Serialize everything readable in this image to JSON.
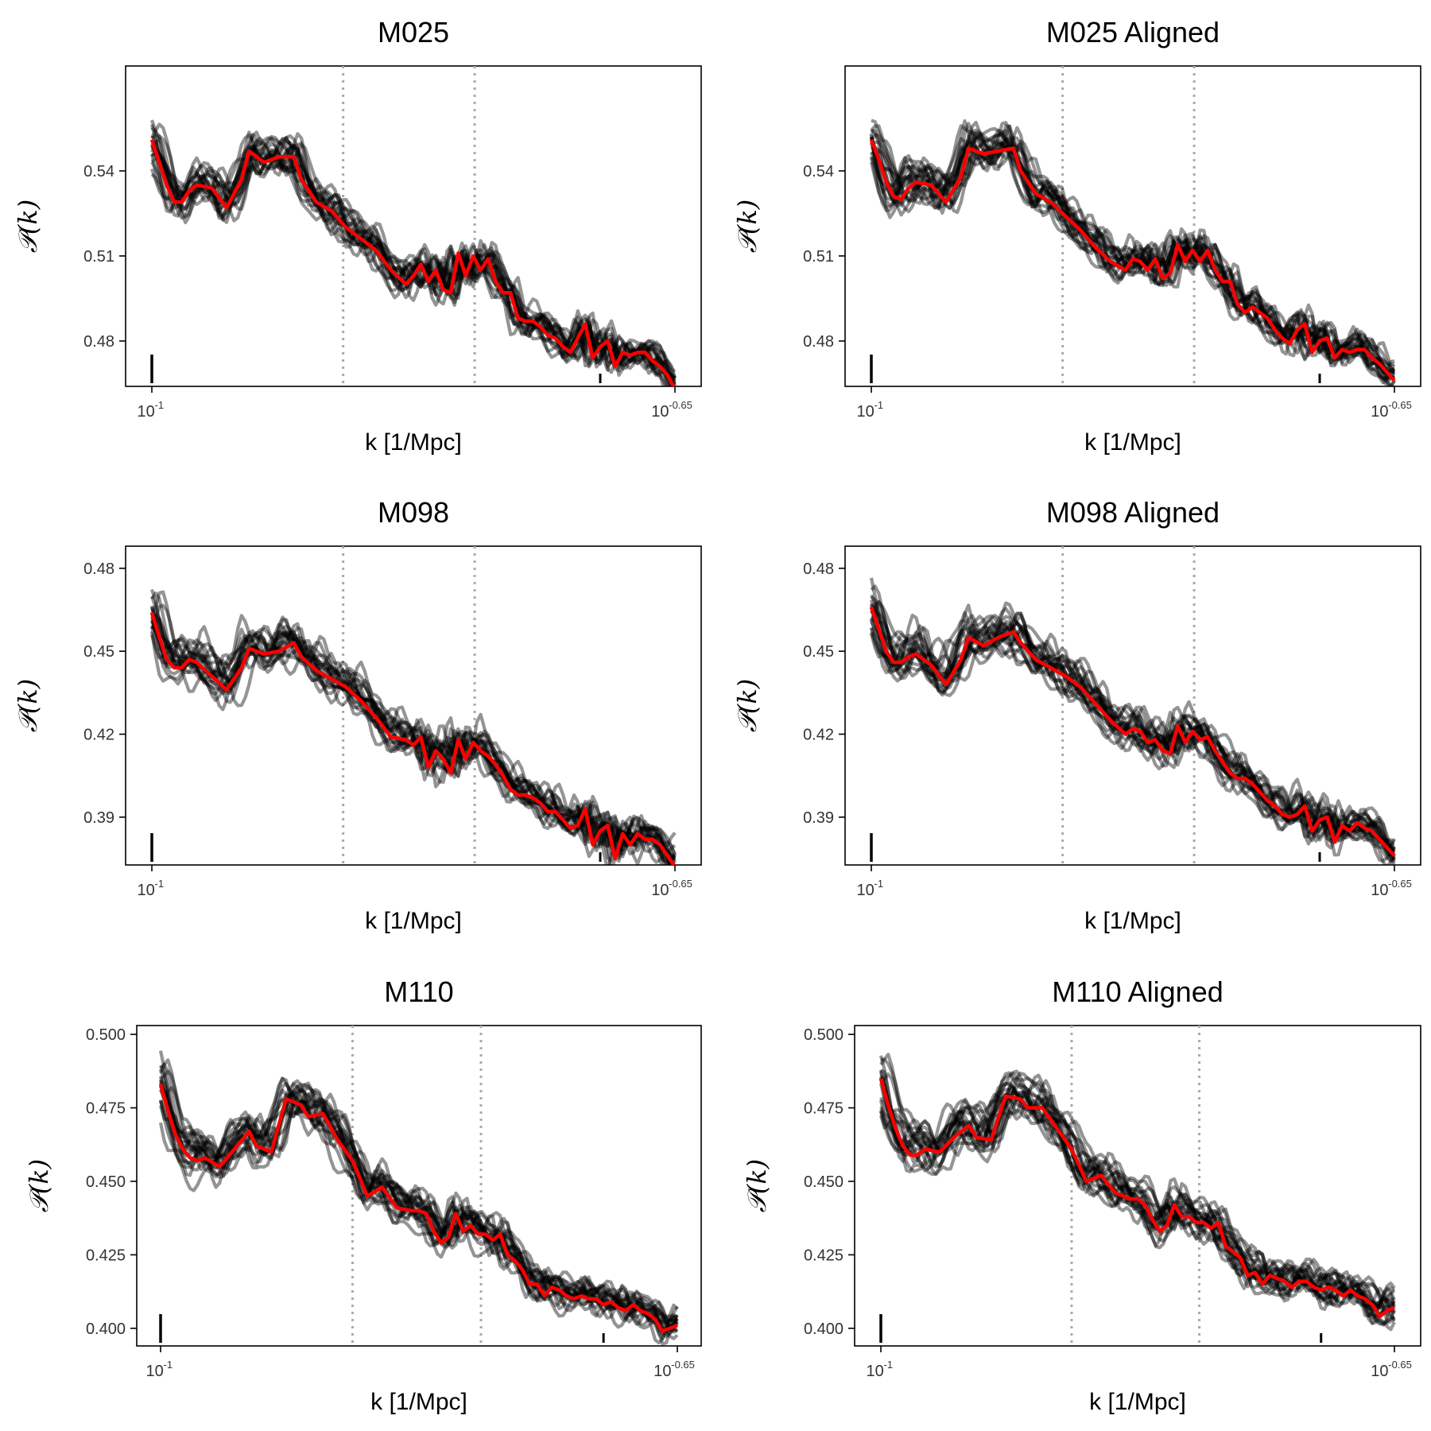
{
  "colors": {
    "replicate": "#000000",
    "mean": "#ff0000",
    "guide": "#aaaaaa"
  },
  "chart_data": [
    {
      "type": "line",
      "title": "M025",
      "xlabel": "k [1/Mpc]",
      "ylabel": "𝒫(k)",
      "x_ticks": [
        {
          "base": "10",
          "exp": "-1"
        },
        {
          "base": "10",
          "exp": "-0.65"
        }
      ],
      "xlim": [
        -1,
        -0.65
      ],
      "ylim": [
        0.464,
        0.577
      ],
      "y_ticks": [
        {
          "value": 0.48,
          "label": "0.48"
        },
        {
          "value": 0.51,
          "label": "0.51"
        },
        {
          "value": 0.54,
          "label": "0.54"
        }
      ],
      "vlines": [
        -0.872,
        -0.784
      ],
      "rug": [
        {
          "x": -1,
          "size": "long"
        },
        {
          "x": -0.7,
          "size": "short"
        }
      ],
      "series_count": 20,
      "series_spread": 0.0065,
      "mean_series": {
        "name": "mean",
        "x": [
          -1,
          -0.995,
          -0.99,
          -0.985,
          -0.98,
          -0.975,
          -0.97,
          -0.96,
          -0.95,
          -0.94,
          -0.935,
          -0.925,
          -0.915,
          -0.905,
          -0.9,
          -0.89,
          -0.88,
          -0.87,
          -0.86,
          -0.85,
          -0.84,
          -0.83,
          -0.825,
          -0.82,
          -0.815,
          -0.81,
          -0.805,
          -0.8,
          -0.795,
          -0.79,
          -0.785,
          -0.78,
          -0.775,
          -0.77,
          -0.765,
          -0.76,
          -0.755,
          -0.75,
          -0.745,
          -0.74,
          -0.735,
          -0.73,
          -0.725,
          -0.72,
          -0.715,
          -0.71,
          -0.705,
          -0.7,
          -0.695,
          -0.69,
          -0.685,
          -0.68,
          -0.675,
          -0.67,
          -0.665,
          -0.66,
          -0.655,
          -0.65
        ],
        "y": [
          0.551,
          0.543,
          0.535,
          0.529,
          0.529,
          0.533,
          0.535,
          0.534,
          0.527,
          0.537,
          0.547,
          0.543,
          0.545,
          0.545,
          0.537,
          0.529,
          0.526,
          0.52,
          0.516,
          0.512,
          0.505,
          0.5,
          0.503,
          0.507,
          0.501,
          0.505,
          0.498,
          0.497,
          0.511,
          0.503,
          0.51,
          0.505,
          0.509,
          0.501,
          0.497,
          0.497,
          0.488,
          0.487,
          0.487,
          0.485,
          0.482,
          0.481,
          0.478,
          0.476,
          0.481,
          0.486,
          0.474,
          0.478,
          0.48,
          0.471,
          0.476,
          0.475,
          0.476,
          0.476,
          0.473,
          0.471,
          0.468,
          0.463
        ]
      }
    },
    {
      "type": "line",
      "title": "M025 Aligned",
      "xlabel": "k [1/Mpc]",
      "ylabel": "𝒫(k)",
      "x_ticks": [
        {
          "base": "10",
          "exp": "-1"
        },
        {
          "base": "10",
          "exp": "-0.65"
        }
      ],
      "xlim": [
        -1,
        -0.65
      ],
      "ylim": [
        0.464,
        0.577
      ],
      "y_ticks": [
        {
          "value": 0.48,
          "label": "0.48"
        },
        {
          "value": 0.51,
          "label": "0.51"
        },
        {
          "value": 0.54,
          "label": "0.54"
        }
      ],
      "vlines": [
        -0.872,
        -0.784
      ],
      "rug": [
        {
          "x": -1,
          "size": "long"
        },
        {
          "x": -0.7,
          "size": "short"
        }
      ],
      "series_count": 20,
      "series_spread": 0.0065,
      "mean_series": {
        "name": "mean",
        "x": [
          -1,
          -0.995,
          -0.99,
          -0.985,
          -0.98,
          -0.975,
          -0.97,
          -0.96,
          -0.95,
          -0.94,
          -0.935,
          -0.925,
          -0.915,
          -0.905,
          -0.9,
          -0.89,
          -0.88,
          -0.87,
          -0.86,
          -0.85,
          -0.84,
          -0.83,
          -0.825,
          -0.82,
          -0.815,
          -0.81,
          -0.805,
          -0.8,
          -0.795,
          -0.79,
          -0.785,
          -0.78,
          -0.775,
          -0.77,
          -0.765,
          -0.76,
          -0.755,
          -0.75,
          -0.745,
          -0.74,
          -0.735,
          -0.73,
          -0.725,
          -0.72,
          -0.715,
          -0.71,
          -0.705,
          -0.7,
          -0.695,
          -0.69,
          -0.685,
          -0.68,
          -0.675,
          -0.67,
          -0.665,
          -0.66,
          -0.655,
          -0.65
        ],
        "y": [
          0.551,
          0.544,
          0.536,
          0.531,
          0.53,
          0.534,
          0.536,
          0.535,
          0.529,
          0.538,
          0.548,
          0.546,
          0.547,
          0.548,
          0.54,
          0.532,
          0.529,
          0.524,
          0.519,
          0.513,
          0.508,
          0.505,
          0.509,
          0.508,
          0.505,
          0.509,
          0.502,
          0.504,
          0.514,
          0.508,
          0.512,
          0.508,
          0.512,
          0.505,
          0.501,
          0.501,
          0.493,
          0.49,
          0.492,
          0.49,
          0.488,
          0.484,
          0.481,
          0.479,
          0.484,
          0.486,
          0.476,
          0.48,
          0.481,
          0.474,
          0.477,
          0.476,
          0.477,
          0.477,
          0.474,
          0.472,
          0.469,
          0.466
        ]
      }
    },
    {
      "type": "line",
      "title": "M098",
      "xlabel": "k [1/Mpc]",
      "ylabel": "𝒫(k)",
      "x_ticks": [
        {
          "base": "10",
          "exp": "-1"
        },
        {
          "base": "10",
          "exp": "-0.65"
        }
      ],
      "xlim": [
        -1,
        -0.65
      ],
      "ylim": [
        0.3727,
        0.488
      ],
      "y_ticks": [
        {
          "value": 0.39,
          "label": "0.39"
        },
        {
          "value": 0.42,
          "label": "0.42"
        },
        {
          "value": 0.45,
          "label": "0.45"
        },
        {
          "value": 0.48,
          "label": "0.48"
        }
      ],
      "vlines": [
        -0.872,
        -0.784
      ],
      "rug": [
        {
          "x": -1,
          "size": "long"
        },
        {
          "x": -0.7,
          "size": "short"
        }
      ],
      "series_count": 20,
      "series_spread": 0.0065,
      "mean_series": {
        "name": "mean",
        "x": [
          -1,
          -0.995,
          -0.99,
          -0.985,
          -0.98,
          -0.975,
          -0.97,
          -0.96,
          -0.95,
          -0.94,
          -0.935,
          -0.925,
          -0.915,
          -0.905,
          -0.9,
          -0.89,
          -0.88,
          -0.87,
          -0.86,
          -0.85,
          -0.84,
          -0.83,
          -0.825,
          -0.82,
          -0.815,
          -0.81,
          -0.805,
          -0.8,
          -0.795,
          -0.79,
          -0.785,
          -0.78,
          -0.775,
          -0.77,
          -0.765,
          -0.76,
          -0.755,
          -0.75,
          -0.745,
          -0.74,
          -0.735,
          -0.73,
          -0.725,
          -0.72,
          -0.715,
          -0.71,
          -0.705,
          -0.7,
          -0.695,
          -0.69,
          -0.685,
          -0.68,
          -0.675,
          -0.67,
          -0.665,
          -0.66,
          -0.655,
          -0.65
        ],
        "y": [
          0.464,
          0.455,
          0.447,
          0.444,
          0.444,
          0.447,
          0.446,
          0.441,
          0.436,
          0.444,
          0.451,
          0.449,
          0.45,
          0.453,
          0.448,
          0.443,
          0.44,
          0.437,
          0.432,
          0.426,
          0.419,
          0.418,
          0.416,
          0.419,
          0.408,
          0.414,
          0.411,
          0.406,
          0.418,
          0.411,
          0.417,
          0.414,
          0.412,
          0.409,
          0.405,
          0.4,
          0.398,
          0.398,
          0.397,
          0.395,
          0.392,
          0.392,
          0.389,
          0.386,
          0.387,
          0.393,
          0.38,
          0.385,
          0.387,
          0.375,
          0.384,
          0.38,
          0.384,
          0.382,
          0.382,
          0.38,
          0.376,
          0.372
        ]
      }
    },
    {
      "type": "line",
      "title": "M098 Aligned",
      "xlabel": "k [1/Mpc]",
      "ylabel": "𝒫(k)",
      "x_ticks": [
        {
          "base": "10",
          "exp": "-1"
        },
        {
          "base": "10",
          "exp": "-0.65"
        }
      ],
      "xlim": [
        -1,
        -0.65
      ],
      "ylim": [
        0.3727,
        0.488
      ],
      "y_ticks": [
        {
          "value": 0.39,
          "label": "0.39"
        },
        {
          "value": 0.42,
          "label": "0.42"
        },
        {
          "value": 0.45,
          "label": "0.45"
        },
        {
          "value": 0.48,
          "label": "0.48"
        }
      ],
      "vlines": [
        -0.872,
        -0.784
      ],
      "rug": [
        {
          "x": -1,
          "size": "long"
        },
        {
          "x": -0.7,
          "size": "short"
        }
      ],
      "series_count": 20,
      "series_spread": 0.0065,
      "mean_series": {
        "name": "mean",
        "x": [
          -1,
          -0.995,
          -0.99,
          -0.985,
          -0.98,
          -0.975,
          -0.97,
          -0.96,
          -0.95,
          -0.94,
          -0.935,
          -0.925,
          -0.915,
          -0.905,
          -0.9,
          -0.89,
          -0.88,
          -0.87,
          -0.86,
          -0.85,
          -0.84,
          -0.83,
          -0.825,
          -0.82,
          -0.815,
          -0.81,
          -0.805,
          -0.8,
          -0.795,
          -0.79,
          -0.785,
          -0.78,
          -0.775,
          -0.77,
          -0.765,
          -0.76,
          -0.755,
          -0.75,
          -0.745,
          -0.74,
          -0.735,
          -0.73,
          -0.725,
          -0.72,
          -0.715,
          -0.71,
          -0.705,
          -0.7,
          -0.695,
          -0.69,
          -0.685,
          -0.68,
          -0.675,
          -0.67,
          -0.665,
          -0.66,
          -0.655,
          -0.65
        ],
        "y": [
          0.466,
          0.458,
          0.45,
          0.446,
          0.446,
          0.448,
          0.449,
          0.445,
          0.438,
          0.447,
          0.455,
          0.452,
          0.455,
          0.457,
          0.453,
          0.447,
          0.444,
          0.441,
          0.437,
          0.431,
          0.425,
          0.42,
          0.422,
          0.421,
          0.417,
          0.418,
          0.414,
          0.413,
          0.423,
          0.417,
          0.421,
          0.418,
          0.419,
          0.414,
          0.41,
          0.406,
          0.404,
          0.404,
          0.402,
          0.399,
          0.396,
          0.394,
          0.391,
          0.39,
          0.391,
          0.394,
          0.385,
          0.389,
          0.39,
          0.381,
          0.387,
          0.385,
          0.388,
          0.386,
          0.385,
          0.382,
          0.379,
          0.376
        ]
      }
    },
    {
      "type": "line",
      "title": "M110",
      "xlabel": "k [1/Mpc]",
      "ylabel": "𝒫(k)",
      "x_ticks": [
        {
          "base": "10",
          "exp": "-1"
        },
        {
          "base": "10",
          "exp": "-0.65"
        }
      ],
      "xlim": [
        -1,
        -0.65
      ],
      "ylim": [
        0.394,
        0.503
      ],
      "y_ticks": [
        {
          "value": 0.4,
          "label": "0.400"
        },
        {
          "value": 0.425,
          "label": "0.425"
        },
        {
          "value": 0.45,
          "label": "0.450"
        },
        {
          "value": 0.475,
          "label": "0.475"
        },
        {
          "value": 0.5,
          "label": "0.500"
        }
      ],
      "vlines": [
        -0.87,
        -0.783
      ],
      "rug": [
        {
          "x": -1,
          "size": "long"
        },
        {
          "x": -0.7,
          "size": "short"
        }
      ],
      "series_count": 20,
      "series_spread": 0.0065,
      "mean_series": {
        "name": "mean",
        "x": [
          -1,
          -0.995,
          -0.99,
          -0.985,
          -0.98,
          -0.975,
          -0.97,
          -0.96,
          -0.95,
          -0.94,
          -0.935,
          -0.925,
          -0.915,
          -0.905,
          -0.9,
          -0.89,
          -0.88,
          -0.87,
          -0.86,
          -0.85,
          -0.84,
          -0.83,
          -0.825,
          -0.82,
          -0.815,
          -0.81,
          -0.805,
          -0.8,
          -0.795,
          -0.79,
          -0.785,
          -0.78,
          -0.775,
          -0.77,
          -0.765,
          -0.76,
          -0.755,
          -0.75,
          -0.745,
          -0.74,
          -0.735,
          -0.73,
          -0.725,
          -0.72,
          -0.715,
          -0.71,
          -0.705,
          -0.7,
          -0.695,
          -0.69,
          -0.685,
          -0.68,
          -0.675,
          -0.67,
          -0.665,
          -0.66,
          -0.655,
          -0.65
        ],
        "y": [
          0.483,
          0.474,
          0.466,
          0.461,
          0.458,
          0.457,
          0.458,
          0.455,
          0.461,
          0.467,
          0.462,
          0.46,
          0.478,
          0.476,
          0.472,
          0.473,
          0.464,
          0.457,
          0.445,
          0.448,
          0.441,
          0.44,
          0.44,
          0.439,
          0.433,
          0.429,
          0.431,
          0.439,
          0.433,
          0.435,
          0.432,
          0.432,
          0.43,
          0.432,
          0.425,
          0.423,
          0.42,
          0.415,
          0.415,
          0.411,
          0.414,
          0.413,
          0.411,
          0.41,
          0.411,
          0.41,
          0.41,
          0.408,
          0.409,
          0.407,
          0.406,
          0.408,
          0.406,
          0.405,
          0.403,
          0.399,
          0.4,
          0.401
        ]
      }
    },
    {
      "type": "line",
      "title": "M110 Aligned",
      "xlabel": "k [1/Mpc]",
      "ylabel": "𝒫(k)",
      "x_ticks": [
        {
          "base": "10",
          "exp": "-1"
        },
        {
          "base": "10",
          "exp": "-0.65"
        }
      ],
      "xlim": [
        -1,
        -0.65
      ],
      "ylim": [
        0.394,
        0.503
      ],
      "y_ticks": [
        {
          "value": 0.4,
          "label": "0.400"
        },
        {
          "value": 0.425,
          "label": "0.425"
        },
        {
          "value": 0.45,
          "label": "0.450"
        },
        {
          "value": 0.475,
          "label": "0.475"
        },
        {
          "value": 0.5,
          "label": "0.500"
        }
      ],
      "vlines": [
        -0.87,
        -0.783
      ],
      "rug": [
        {
          "x": -1,
          "size": "long"
        },
        {
          "x": -0.7,
          "size": "short"
        }
      ],
      "series_count": 20,
      "series_spread": 0.0065,
      "mean_series": {
        "name": "mean",
        "x": [
          -1,
          -0.995,
          -0.99,
          -0.985,
          -0.98,
          -0.975,
          -0.97,
          -0.96,
          -0.95,
          -0.94,
          -0.935,
          -0.925,
          -0.915,
          -0.905,
          -0.9,
          -0.89,
          -0.88,
          -0.87,
          -0.86,
          -0.85,
          -0.84,
          -0.83,
          -0.825,
          -0.82,
          -0.815,
          -0.81,
          -0.805,
          -0.8,
          -0.795,
          -0.79,
          -0.785,
          -0.78,
          -0.775,
          -0.77,
          -0.765,
          -0.76,
          -0.755,
          -0.75,
          -0.745,
          -0.74,
          -0.735,
          -0.73,
          -0.725,
          -0.72,
          -0.715,
          -0.71,
          -0.705,
          -0.7,
          -0.695,
          -0.69,
          -0.685,
          -0.68,
          -0.675,
          -0.67,
          -0.665,
          -0.66,
          -0.655,
          -0.65
        ],
        "y": [
          0.485,
          0.476,
          0.468,
          0.462,
          0.459,
          0.459,
          0.461,
          0.46,
          0.465,
          0.469,
          0.465,
          0.464,
          0.479,
          0.478,
          0.475,
          0.475,
          0.468,
          0.461,
          0.45,
          0.452,
          0.446,
          0.444,
          0.444,
          0.442,
          0.437,
          0.433,
          0.435,
          0.442,
          0.438,
          0.438,
          0.436,
          0.436,
          0.434,
          0.436,
          0.428,
          0.426,
          0.424,
          0.418,
          0.419,
          0.415,
          0.418,
          0.417,
          0.416,
          0.414,
          0.416,
          0.416,
          0.414,
          0.413,
          0.414,
          0.413,
          0.411,
          0.413,
          0.411,
          0.41,
          0.408,
          0.404,
          0.406,
          0.407
        ]
      }
    }
  ]
}
